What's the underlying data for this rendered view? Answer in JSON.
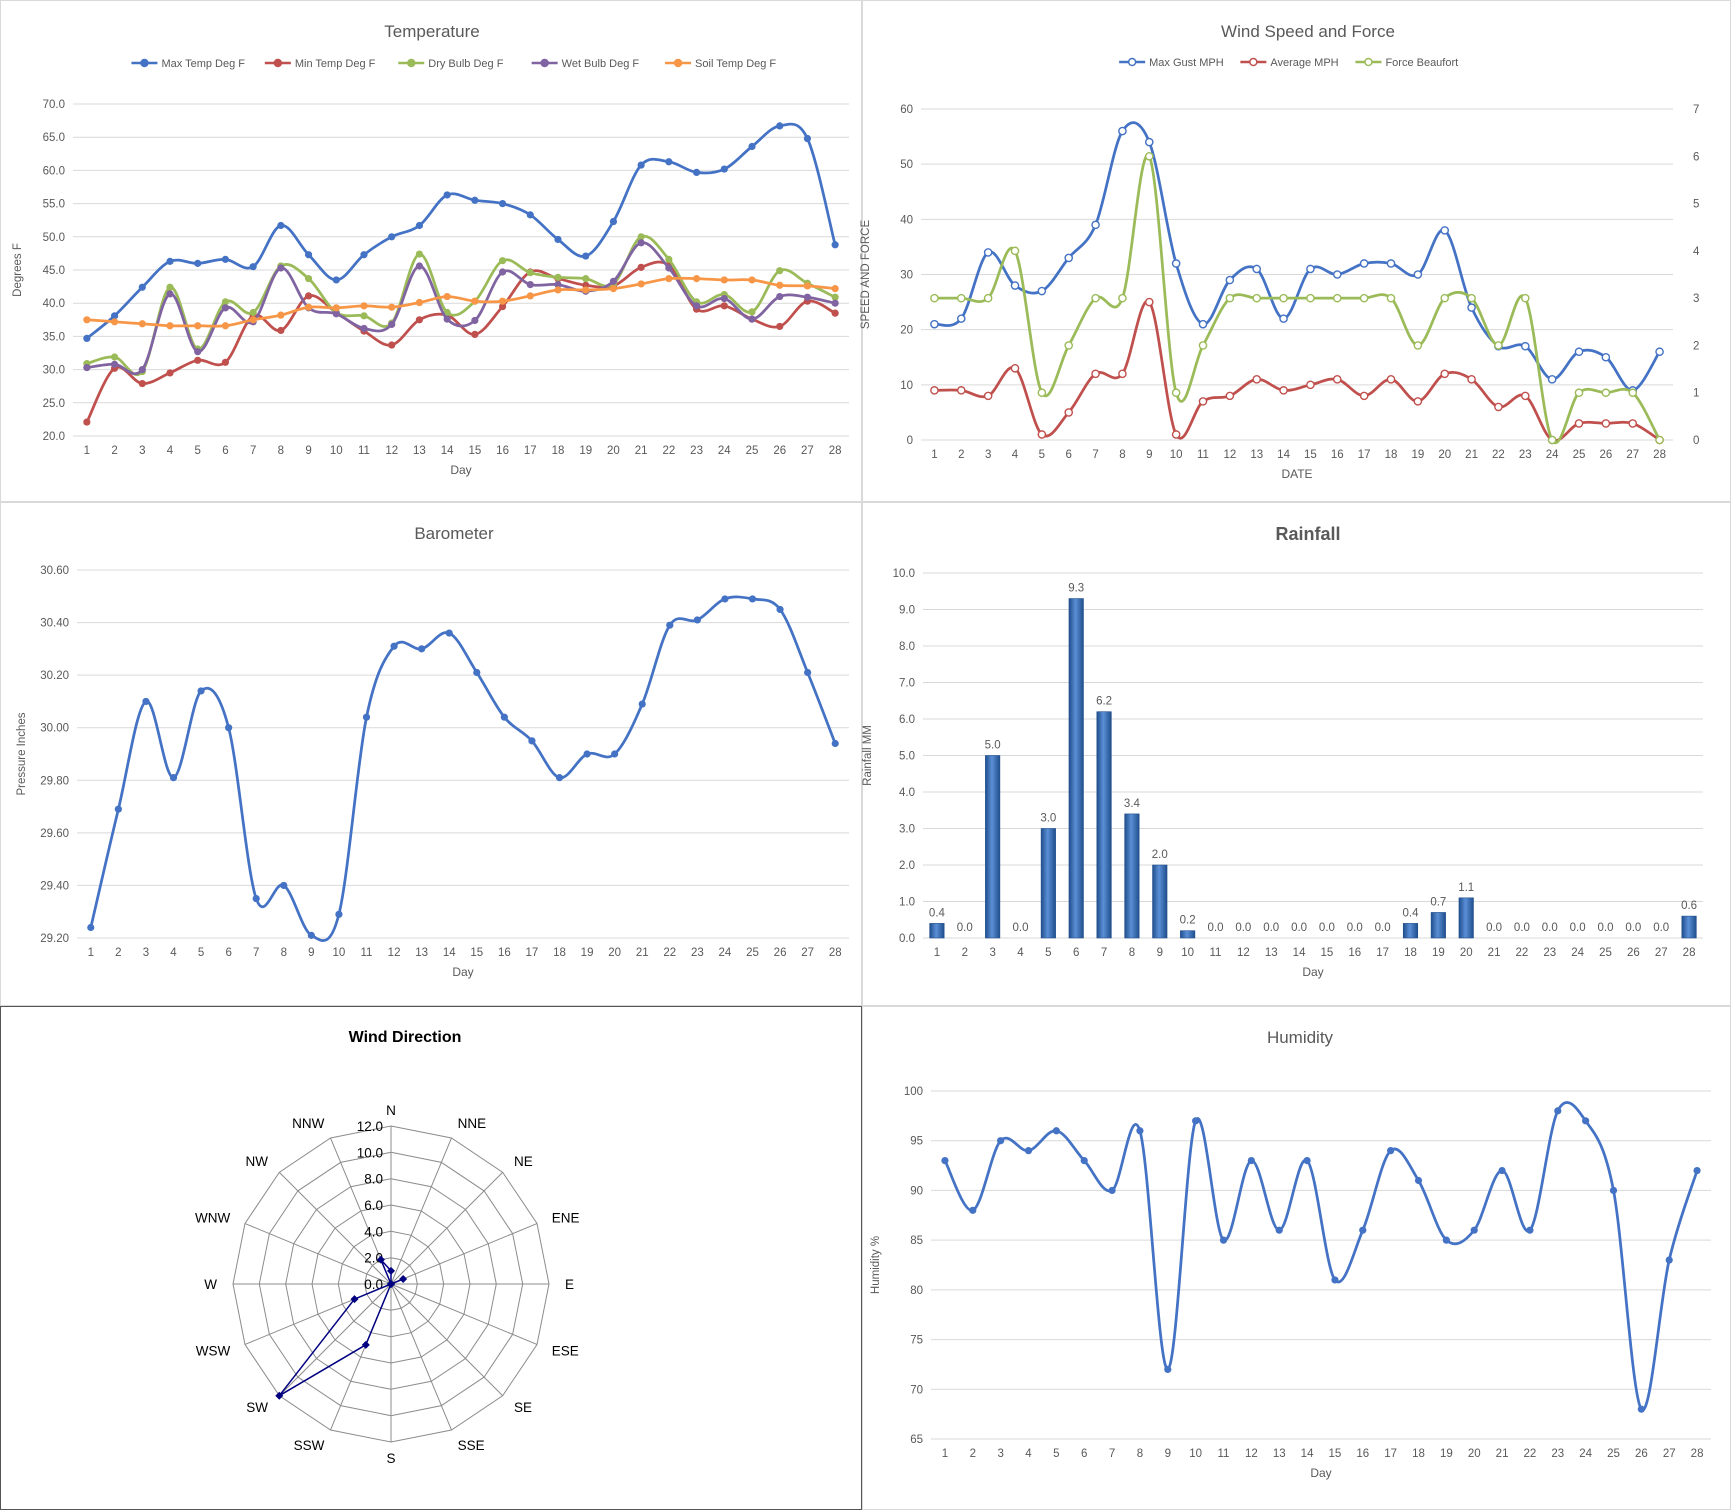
{
  "days": [
    1,
    2,
    3,
    4,
    5,
    6,
    7,
    8,
    9,
    10,
    11,
    12,
    13,
    14,
    15,
    16,
    17,
    18,
    19,
    20,
    21,
    22,
    23,
    24,
    25,
    26,
    27,
    28
  ],
  "colors": {
    "blue": "#4472c4",
    "red": "#c0504d",
    "green": "#9bbb59",
    "purple": "#8064a2",
    "orange": "#f79646",
    "navy": "#000080",
    "grid": "#d9d9d9",
    "text": "#595959"
  },
  "chart_data": [
    {
      "id": "temperature",
      "type": "line",
      "title": "Temperature",
      "xlabel": "Day",
      "ylabel": "Degrees F",
      "ylim": [
        20,
        70
      ],
      "ytick_step": 5,
      "ytick_decimals": 1,
      "smooth": true,
      "markers": "filled",
      "legend": "top",
      "x": [
        1,
        2,
        3,
        4,
        5,
        6,
        7,
        8,
        9,
        10,
        11,
        12,
        13,
        14,
        15,
        16,
        17,
        18,
        19,
        20,
        21,
        22,
        23,
        24,
        25,
        26,
        27,
        28
      ],
      "series": [
        {
          "name": "Max Temp Deg F",
          "color": "#4472c4",
          "values": [
            34.7,
            38.1,
            42.4,
            46.3,
            46.0,
            46.6,
            45.5,
            51.7,
            47.3,
            43.5,
            47.3,
            50.0,
            51.7,
            56.3,
            55.5,
            55.0,
            53.3,
            49.6,
            47.1,
            52.3,
            60.8,
            61.3,
            59.7,
            60.2,
            63.6,
            66.7,
            64.8,
            48.8
          ]
        },
        {
          "name": "Min Temp Deg F",
          "color": "#c0504d",
          "values": [
            22.1,
            30.2,
            27.9,
            29.5,
            31.4,
            31.1,
            38.1,
            35.9,
            41.1,
            38.6,
            35.8,
            33.7,
            37.5,
            38.2,
            35.3,
            39.5,
            44.7,
            43.7,
            42.7,
            42.6,
            45.4,
            45.7,
            39.1,
            39.6,
            37.6,
            36.5,
            40.3,
            38.5
          ]
        },
        {
          "name": "Dry Bulb Deg F",
          "color": "#9bbb59",
          "values": [
            30.9,
            31.9,
            29.7,
            42.4,
            33.1,
            40.2,
            38.6,
            45.6,
            43.7,
            38.6,
            38.1,
            37.0,
            47.4,
            38.6,
            40.3,
            46.4,
            44.6,
            43.9,
            43.7,
            42.9,
            50.0,
            46.6,
            40.2,
            41.3,
            38.7,
            44.9,
            43.0,
            40.9
          ]
        },
        {
          "name": "Wet Bulb Deg F",
          "color": "#8064a2",
          "values": [
            30.3,
            30.8,
            30.0,
            41.4,
            32.7,
            39.3,
            37.2,
            45.3,
            39.3,
            38.4,
            36.2,
            36.8,
            45.6,
            37.6,
            37.4,
            44.7,
            42.8,
            42.8,
            41.8,
            43.3,
            49.1,
            45.3,
            39.6,
            40.7,
            37.6,
            41.0,
            40.9,
            40.0
          ]
        },
        {
          "name": "Soil Temp Deg F",
          "color": "#f79646",
          "values": [
            37.5,
            37.2,
            36.9,
            36.6,
            36.6,
            36.6,
            37.5,
            38.2,
            39.4,
            39.3,
            39.6,
            39.4,
            40.1,
            41.0,
            40.3,
            40.3,
            41.1,
            42.0,
            42.0,
            42.2,
            42.9,
            43.7,
            43.7,
            43.5,
            43.5,
            42.7,
            42.6,
            42.2
          ]
        }
      ]
    },
    {
      "id": "wind",
      "type": "line",
      "title": "Wind Speed and Force",
      "xlabel": "DATE",
      "ylabel": "SPEED AND FORCE",
      "ylim": [
        0,
        60
      ],
      "ytick_step": 10,
      "ytick_decimals": 0,
      "y2lim": [
        0,
        7
      ],
      "y2tick_step": 1,
      "smooth": true,
      "markers": "hollow",
      "legend": "top",
      "x": [
        1,
        2,
        3,
        4,
        5,
        6,
        7,
        8,
        9,
        10,
        11,
        12,
        13,
        14,
        15,
        16,
        17,
        18,
        19,
        20,
        21,
        22,
        23,
        24,
        25,
        26,
        27,
        28
      ],
      "series": [
        {
          "name": "Max Gust MPH",
          "axis": "left",
          "color": "#4472c4",
          "values": [
            21,
            22,
            34,
            28,
            27,
            33,
            39,
            56,
            54,
            32,
            21,
            29,
            31,
            22,
            31,
            30,
            32,
            32,
            30,
            38,
            24,
            17,
            17,
            11,
            16,
            15,
            9,
            16
          ]
        },
        {
          "name": "Average MPH",
          "axis": "left",
          "color": "#c0504d",
          "values": [
            9,
            9,
            8,
            13,
            1,
            5,
            12,
            12,
            25,
            1,
            7,
            8,
            11,
            9,
            10,
            11,
            8,
            11,
            7,
            12,
            11,
            6,
            8,
            0,
            3,
            3,
            3,
            0
          ]
        },
        {
          "name": "Force Beaufort",
          "axis": "right",
          "color": "#9bbb59",
          "values": [
            3,
            3,
            3,
            4,
            1,
            2,
            3,
            3,
            6,
            1,
            2,
            3,
            3,
            3,
            3,
            3,
            3,
            3,
            2,
            3,
            3,
            2,
            3,
            0,
            1,
            1,
            1,
            0
          ]
        }
      ]
    },
    {
      "id": "barometer",
      "type": "line",
      "title": "Barometer",
      "xlabel": "Day",
      "ylabel": "Pressure Inches",
      "ylim": [
        29.2,
        30.6
      ],
      "ytick_step": 0.2,
      "ytick_decimals": 2,
      "smooth": true,
      "markers": "filled",
      "legend": "none",
      "x": [
        1,
        2,
        3,
        4,
        5,
        6,
        7,
        8,
        9,
        10,
        11,
        12,
        13,
        14,
        15,
        16,
        17,
        18,
        19,
        20,
        21,
        22,
        23,
        24,
        25,
        26,
        27,
        28
      ],
      "series": [
        {
          "name": "",
          "color": "#4472c4",
          "values": [
            29.24,
            29.69,
            30.1,
            29.81,
            30.14,
            30.0,
            29.35,
            29.4,
            29.21,
            29.29,
            30.04,
            30.31,
            30.3,
            30.36,
            30.21,
            30.04,
            29.95,
            29.81,
            29.9,
            29.9,
            30.09,
            30.39,
            30.41,
            30.49,
            30.49,
            30.45,
            30.21,
            29.94
          ]
        }
      ]
    },
    {
      "id": "rainfall",
      "type": "bar",
      "title": "Rainfall",
      "xlabel": "Day",
      "ylabel": "Rainfall MM",
      "ylim": [
        0,
        10
      ],
      "ytick_step": 1,
      "ytick_decimals": 1,
      "data_labels": true,
      "legend": "none",
      "categories": [
        1,
        2,
        3,
        4,
        5,
        6,
        7,
        8,
        9,
        10,
        11,
        12,
        13,
        14,
        15,
        16,
        17,
        18,
        19,
        20,
        21,
        22,
        23,
        24,
        25,
        26,
        27,
        28
      ],
      "series": [
        {
          "name": "",
          "color": "#2e5c9e",
          "values": [
            0.4,
            0.0,
            5.0,
            0.0,
            3.0,
            9.3,
            6.2,
            3.4,
            2.0,
            0.2,
            0.0,
            0.0,
            0.0,
            0.0,
            0.0,
            0.0,
            0.0,
            0.4,
            0.7,
            1.1,
            0.0,
            0.0,
            0.0,
            0.0,
            0.0,
            0.0,
            0.0,
            0.6
          ]
        }
      ]
    },
    {
      "id": "wind_direction",
      "type": "radar",
      "title": "Wind Direction",
      "rlim": [
        0,
        12
      ],
      "rtick_step": 2,
      "rtick_decimals": 1,
      "legend": "none",
      "categories": [
        "N",
        "NNE",
        "NE",
        "ENE",
        "E",
        "ESE",
        "SE",
        "SSE",
        "S",
        "SSW",
        "SW",
        "WSW",
        "W",
        "WNW",
        "NW",
        "NNW"
      ],
      "series": [
        {
          "name": "",
          "color": "#000080",
          "values": [
            1,
            0,
            0,
            1,
            0,
            0,
            0,
            0,
            0,
            5,
            12,
            3,
            0,
            0,
            0,
            2
          ]
        }
      ]
    },
    {
      "id": "humidity",
      "type": "line",
      "title": "Humidity",
      "xlabel": "Day",
      "ylabel": "Humidity %",
      "ylim": [
        65,
        100
      ],
      "ytick_step": 5,
      "ytick_decimals": 0,
      "smooth": true,
      "markers": "filled",
      "legend": "none",
      "x": [
        1,
        2,
        3,
        4,
        5,
        6,
        7,
        8,
        9,
        10,
        11,
        12,
        13,
        14,
        15,
        16,
        17,
        18,
        19,
        20,
        21,
        22,
        23,
        24,
        25,
        26,
        27,
        28
      ],
      "series": [
        {
          "name": "",
          "color": "#4472c4",
          "values": [
            93,
            88,
            95,
            94,
            96,
            93,
            90,
            96,
            72,
            97,
            85,
            93,
            86,
            93,
            81,
            86,
            94,
            91,
            85,
            86,
            92,
            86,
            98,
            97,
            90,
            68,
            83,
            92
          ]
        }
      ]
    }
  ]
}
